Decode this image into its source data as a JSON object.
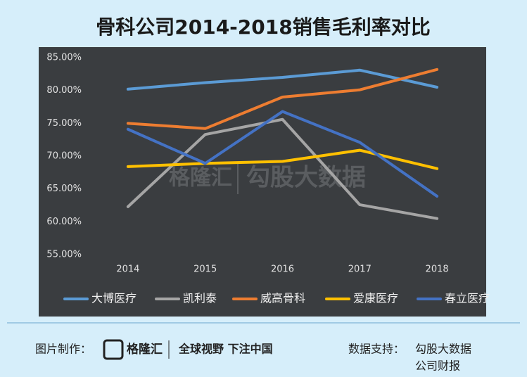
{
  "chart_data": {
    "type": "line",
    "title": "骨科公司2014-2018销售毛利率对比",
    "categories": [
      "2014",
      "2015",
      "2016",
      "2017",
      "2018"
    ],
    "series": [
      {
        "name": "大博医疗",
        "color": "#5b9bd5",
        "values": [
          80.2,
          81.2,
          82.0,
          83.1,
          80.5
        ]
      },
      {
        "name": "凯利泰",
        "color": "#a5a5a5",
        "values": [
          62.3,
          73.3,
          75.6,
          62.6,
          60.5
        ]
      },
      {
        "name": "威高骨科",
        "color": "#ed7d31",
        "values": [
          75.0,
          74.2,
          79.0,
          80.1,
          83.2
        ]
      },
      {
        "name": "爱康医疗",
        "color": "#ffc000",
        "values": [
          68.4,
          68.9,
          69.2,
          70.9,
          68.1
        ]
      },
      {
        "name": "春立医疗",
        "color": "#4472c4",
        "values": [
          74.1,
          68.9,
          76.8,
          72.1,
          63.9
        ]
      }
    ],
    "ylim": [
      55,
      85
    ],
    "yticks": [
      {
        "value": 55,
        "label": "55.00%"
      },
      {
        "value": 60,
        "label": "60.00%"
      },
      {
        "value": 65,
        "label": "65.00%"
      },
      {
        "value": 70,
        "label": "70.00%"
      },
      {
        "value": 75,
        "label": "75.00%"
      },
      {
        "value": 80,
        "label": "80.00%"
      },
      {
        "value": 85,
        "label": "85.00%"
      }
    ],
    "grid": false,
    "legend": "bottom"
  },
  "watermark": [
    "格隆汇",
    "勾股大数据"
  ],
  "footer": {
    "made_by_label": "图片制作：",
    "brand": "格隆汇",
    "slogan": "全球视野 下注中国",
    "source_label": "数据支持：",
    "sources": [
      "勾股大数据",
      "公司财报"
    ]
  }
}
